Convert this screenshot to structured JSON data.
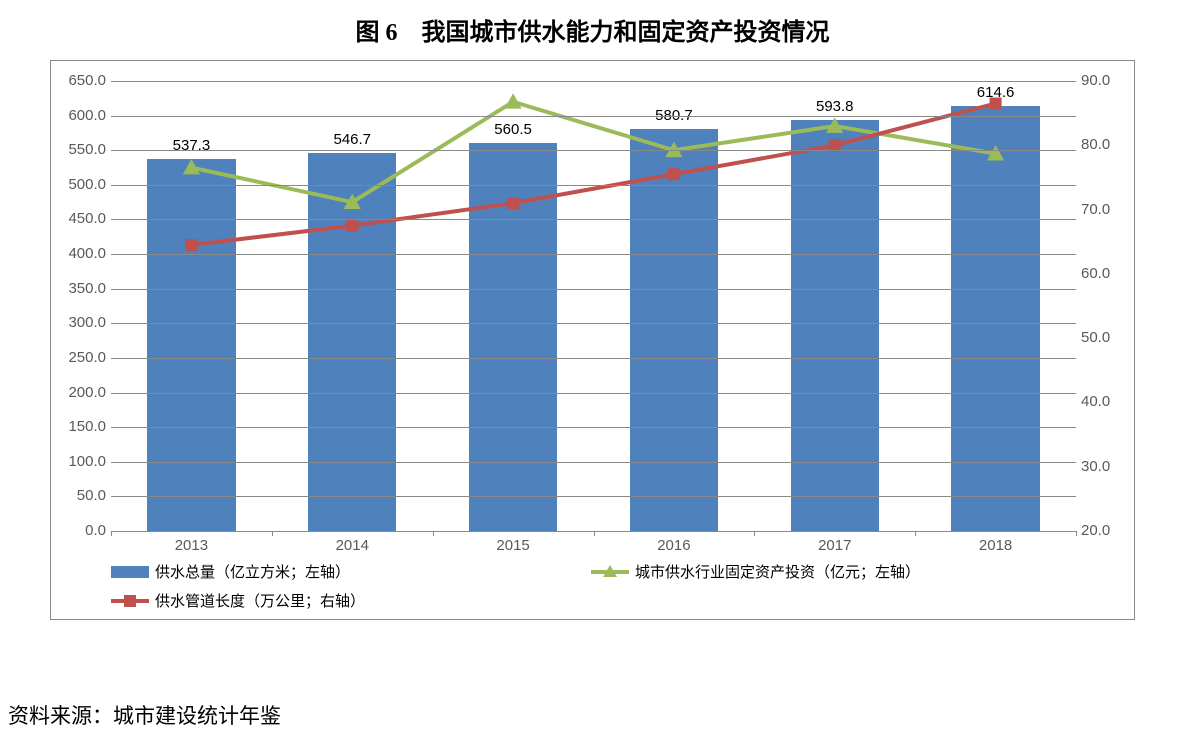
{
  "title": "图 6　我国城市供水能力和固定资产投资情况",
  "source": "资料来源：城市建设统计年鉴",
  "chart": {
    "type": "bar+line",
    "categories": [
      "2013",
      "2014",
      "2015",
      "2016",
      "2017",
      "2018"
    ],
    "bar_series": {
      "name": "供水总量（亿立方米；左轴）",
      "values": [
        537.3,
        546.7,
        560.5,
        580.7,
        593.8,
        614.6
      ],
      "color": "#4f81bd",
      "axis": "left",
      "bar_width": 0.55
    },
    "line_series": [
      {
        "name": "城市供水行业固定资产投资（亿元；左轴）",
        "values": [
          525,
          475,
          620,
          550,
          585,
          545
        ],
        "color": "#9bbb59",
        "marker": "triangle",
        "marker_size": 12,
        "line_width": 4,
        "axis": "left"
      },
      {
        "name": "供水管道长度（万公里；右轴）",
        "values": [
          64.5,
          67.5,
          71.0,
          75.5,
          80.0,
          86.5
        ],
        "color": "#c0504d",
        "marker": "square",
        "marker_size": 12,
        "line_width": 4,
        "axis": "right"
      }
    ],
    "y_left": {
      "min": 0.0,
      "max": 650.0,
      "step": 50.0
    },
    "y_right": {
      "min": 20.0,
      "max": 90.0,
      "step": 10.0
    },
    "gridline_color": "#888888",
    "background_color": "#ffffff",
    "tick_fontsize": 15,
    "label_fontsize": 15,
    "title_fontsize": 24
  }
}
